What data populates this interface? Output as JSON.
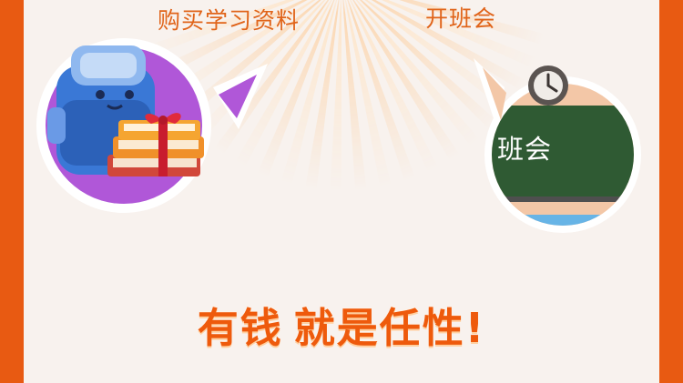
{
  "labels": {
    "left": "购买学习资料",
    "right": "开班会"
  },
  "board": {
    "text": "班会"
  },
  "headline": {
    "part1": "有钱",
    "part2": "就是任性!"
  },
  "icons": {
    "left_bubble": "backpack-and-gift-books-icon",
    "right_bubble": "clock-and-chalkboard-icon"
  },
  "colors": {
    "frame": "#e85a12",
    "panel": "#f8f2ee",
    "label_text": "#e0641a",
    "headline": "#ee5a0c",
    "left_bubble": "#b057d8",
    "right_bubble": "#f3c7a7",
    "chalkboard": "#2f5a33"
  }
}
